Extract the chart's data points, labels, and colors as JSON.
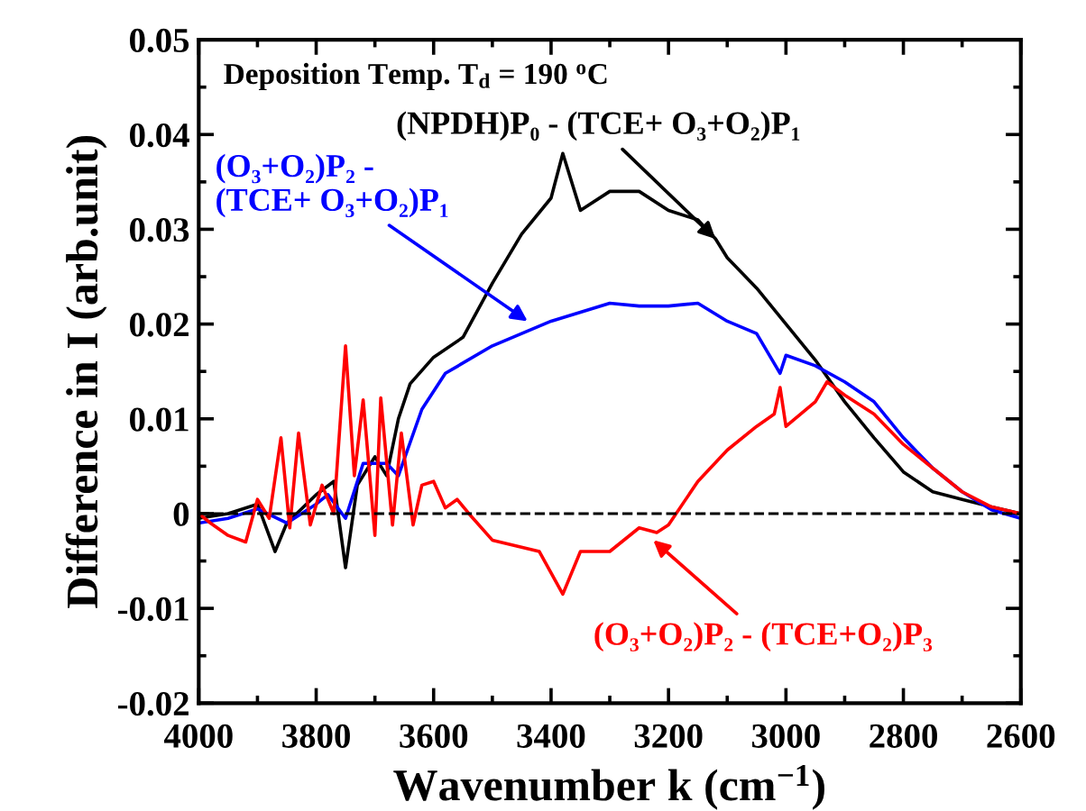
{
  "chart_data": {
    "type": "line",
    "xlabel": "Wavenumber k (cm$^{−1}$)",
    "ylabel": "Difference in I (arb.unit)",
    "xlim": [
      4000,
      2600
    ],
    "xticks": [
      4000,
      3800,
      3600,
      3400,
      3200,
      3000,
      2800,
      2600
    ],
    "ylim": [
      -0.02,
      0.05
    ],
    "yticks": [
      -0.02,
      -0.01,
      {
        "value": 0,
        "label": "0"
      },
      0.01,
      0.02,
      0.03,
      0.04,
      0.05
    ],
    "grid": false,
    "line_style": "solid",
    "marker": "none",
    "ref_lines": [
      {
        "axis": "y",
        "value": 0,
        "color": "#000000",
        "line_style": "dashed"
      }
    ],
    "annotations": [
      "Deposition Temp. T$_{d}$ = 190 $^{o}$C",
      {
        "text": "(NPDH)P₀ - (TCE+ O₃+O₂)P₁",
        "x": 3120,
        "y": 0.029
      },
      {
        "text": "(O₃+O₂)P₂ -\n(TCE+ O₃+O₂)P₁",
        "x": 3440,
        "y": 0.0203
      },
      {
        "text": "(O₃+O₂)P₂ - (TCE+O₂)P₃",
        "x": 3226,
        "y": -0.0028
      }
    ],
    "series": [
      {
        "color": "#000000",
        "x": [
          4000,
          3950,
          3900,
          3870,
          3850,
          3800,
          3770,
          3750,
          3730,
          3700,
          3680,
          3660,
          3640,
          3600,
          3550,
          3500,
          3450,
          3400,
          3380,
          3350,
          3300,
          3250,
          3200,
          3150,
          3120,
          3100,
          3050,
          3000,
          2950,
          2900,
          2850,
          2800,
          2750,
          2700,
          2650,
          2600
        ],
        "values": [
          -0.0005,
          0.0,
          0.001,
          -0.004,
          -0.001,
          0.002,
          0.0034,
          -0.0057,
          0.003,
          0.006,
          0.004,
          0.01,
          0.0137,
          0.0165,
          0.0186,
          0.0243,
          0.0295,
          0.0333,
          0.038,
          0.032,
          0.034,
          0.034,
          0.032,
          0.031,
          0.029,
          0.027,
          0.0238,
          0.02,
          0.0162,
          0.0118,
          0.008,
          0.0044,
          0.0023,
          0.0015,
          0.0007,
          0.0
        ]
      },
      {
        "color": "#0000ff",
        "x": [
          4000,
          3950,
          3900,
          3850,
          3800,
          3780,
          3750,
          3720,
          3680,
          3660,
          3620,
          3580,
          3500,
          3400,
          3300,
          3250,
          3200,
          3150,
          3100,
          3050,
          3010,
          3000,
          2950,
          2900,
          2850,
          2800,
          2750,
          2700,
          2650,
          2600
        ],
        "values": [
          -0.001,
          -0.0005,
          0.0005,
          -0.001,
          0.001,
          0.002,
          -0.0005,
          0.0053,
          0.0053,
          0.004,
          0.011,
          0.0148,
          0.0177,
          0.0203,
          0.0222,
          0.0219,
          0.0219,
          0.0222,
          0.0203,
          0.019,
          0.0148,
          0.0167,
          0.0156,
          0.0139,
          0.0118,
          0.008,
          0.0048,
          0.0023,
          0.0004,
          -0.0005
        ]
      },
      {
        "color": "#ff0000",
        "x": [
          4000,
          3980,
          3950,
          3920,
          3900,
          3880,
          3860,
          3845,
          3830,
          3810,
          3790,
          3770,
          3750,
          3735,
          3720,
          3700,
          3690,
          3670,
          3655,
          3635,
          3620,
          3600,
          3580,
          3560,
          3540,
          3500,
          3460,
          3420,
          3380,
          3350,
          3300,
          3250,
          3220,
          3200,
          3150,
          3100,
          3050,
          3020,
          3010,
          3000,
          2950,
          2930,
          2900,
          2850,
          2800,
          2750,
          2700,
          2650,
          2600
        ],
        "values": [
          0.0,
          -0.001,
          -0.0023,
          -0.003,
          0.0015,
          -0.0005,
          0.008,
          -0.0015,
          0.0085,
          -0.0012,
          0.003,
          0.0,
          0.0177,
          0.004,
          0.012,
          -0.0023,
          0.0122,
          -0.0012,
          0.0085,
          -0.0012,
          0.003,
          0.0034,
          0.0006,
          0.0015,
          0.0,
          -0.0028,
          -0.0034,
          -0.004,
          -0.0085,
          -0.004,
          -0.004,
          -0.0015,
          -0.002,
          -0.0012,
          0.0034,
          0.0067,
          0.0092,
          0.0105,
          0.0133,
          0.0092,
          0.0118,
          0.0139,
          0.0125,
          0.0105,
          0.0073,
          0.0048,
          0.0023,
          0.0007,
          0.0
        ]
      }
    ]
  }
}
